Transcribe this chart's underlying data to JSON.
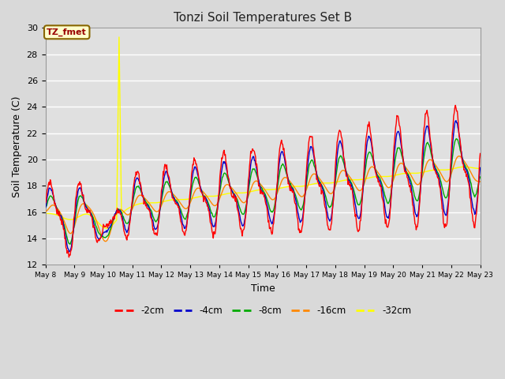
{
  "title": "Tonzi Soil Temperatures Set B",
  "xlabel": "Time",
  "ylabel": "Soil Temperature (C)",
  "ylim": [
    12,
    30
  ],
  "yticks": [
    12,
    14,
    16,
    18,
    20,
    22,
    24,
    26,
    28,
    30
  ],
  "background_color": "#d9d9d9",
  "plot_bg_color": "#e0e0e0",
  "grid_color": "#ffffff",
  "series_colors": {
    "-2cm": "#ff0000",
    "-4cm": "#0000cc",
    "-8cm": "#00aa00",
    "-16cm": "#ff8800",
    "-32cm": "#ffff00"
  },
  "annotation_text": "TZ_fmet",
  "annotation_box_color": "#ffffcc",
  "annotation_border_color": "#886600",
  "annotation_text_color": "#990000",
  "x_start": 8.0,
  "x_end": 23.0,
  "xtick_days": [
    8,
    9,
    10,
    11,
    12,
    13,
    14,
    15,
    16,
    17,
    18,
    19,
    20,
    21,
    22,
    23
  ],
  "spike_day": 10.55,
  "spike_value": 29.3
}
